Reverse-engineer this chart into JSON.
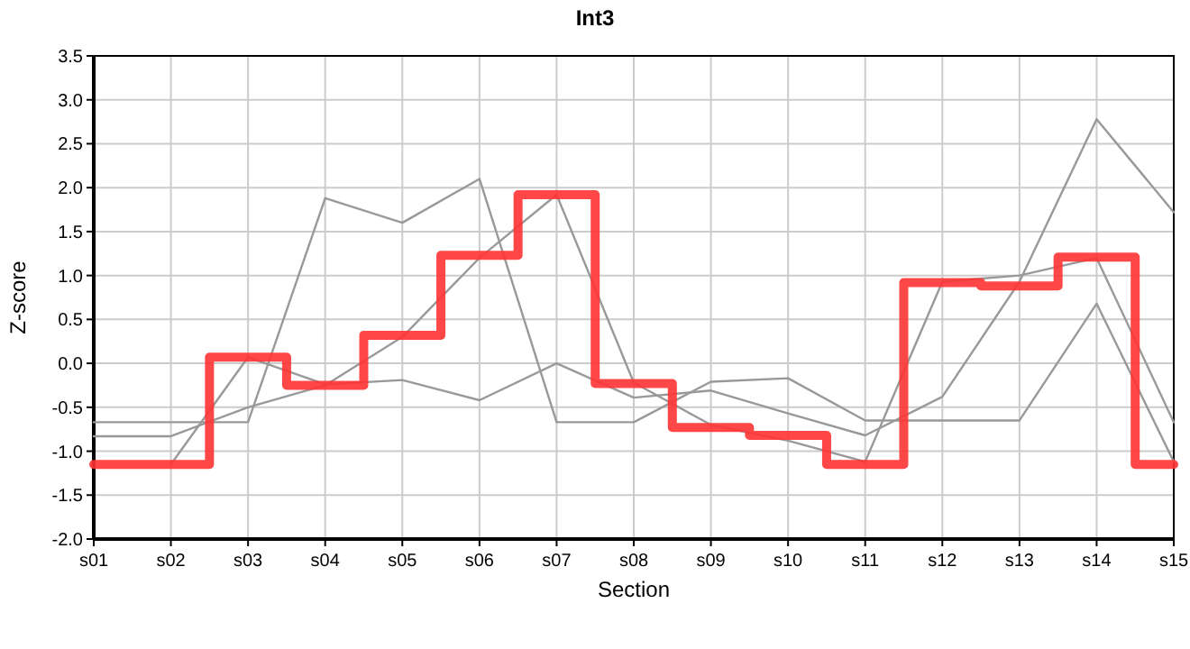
{
  "chart_data": {
    "type": "line",
    "title": "Int3",
    "xlabel": "Section",
    "ylabel": "Z-score",
    "categories": [
      "s01",
      "s02",
      "s03",
      "s04",
      "s05",
      "s06",
      "s07",
      "s08",
      "s09",
      "s10",
      "s11",
      "s12",
      "s13",
      "s14",
      "s15"
    ],
    "series": [
      {
        "type": "line",
        "color": "#999999",
        "values": [
          -0.67,
          -0.67,
          -0.67,
          1.88,
          1.6,
          2.1,
          -0.67,
          -0.67,
          -0.21,
          -0.17,
          -0.65,
          -0.65,
          -0.65,
          0.68,
          -1.12
        ]
      },
      {
        "type": "line",
        "color": "#999999",
        "values": [
          -0.83,
          -0.83,
          -0.5,
          -0.25,
          0.3,
          1.2,
          1.92,
          -0.22,
          -0.7,
          -0.88,
          -1.12,
          0.93,
          1.0,
          1.2,
          -0.67
        ]
      },
      {
        "type": "line",
        "color": "#999999",
        "values": [
          null,
          -1.15,
          0.07,
          -0.24,
          -0.19,
          -0.42,
          0.0,
          -0.39,
          -0.31,
          -0.57,
          -0.82,
          -0.38,
          0.93,
          2.78,
          1.72
        ]
      },
      {
        "type": "step",
        "color": "#ff3333",
        "values": [
          -1.15,
          -1.15,
          0.07,
          -0.25,
          0.32,
          1.23,
          1.92,
          -0.23,
          -0.73,
          -0.82,
          -1.15,
          0.92,
          0.88,
          1.21,
          -1.15
        ]
      }
    ],
    "ylim": [
      -2.0,
      3.5
    ],
    "yticks": [
      {
        "value": -2,
        "label": "-2.0"
      },
      {
        "value": -1.5,
        "label": "-1.5"
      },
      {
        "value": -1,
        "label": "-1.0"
      },
      {
        "value": -0.5,
        "label": "-0.5"
      },
      {
        "value": 0,
        "label": "0.0"
      },
      {
        "value": 0.5,
        "label": "0.5"
      },
      {
        "value": 1,
        "label": "1.0"
      },
      {
        "value": 1.5,
        "label": "1.5"
      },
      {
        "value": 2,
        "label": "2.0"
      },
      {
        "value": 2.5,
        "label": "2.5"
      },
      {
        "value": 3,
        "label": "3.0"
      },
      {
        "value": 3.5,
        "label": "3.5"
      }
    ],
    "grid": true,
    "marker": "none",
    "line_style": "solid"
  }
}
